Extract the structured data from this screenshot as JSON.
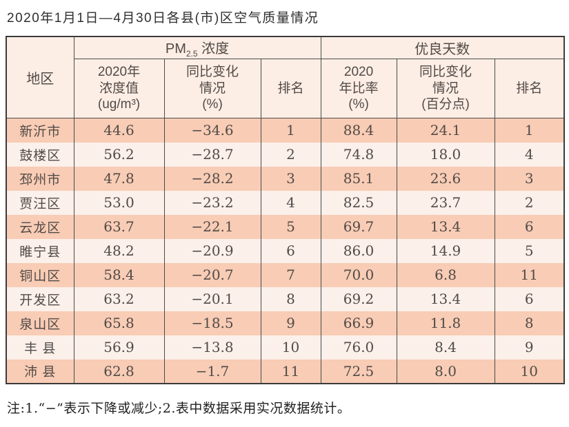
{
  "page_title": "2020年1月1日—4月30日各县(市)区空气质量情况",
  "table": {
    "header": {
      "region": "地区",
      "pm_prefix": "PM",
      "pm_sub": "2.5",
      "pm_suffix": " 浓度",
      "good_days": "优良天数",
      "col_concentration": "2020年\n浓度值\n(ug/m³)",
      "col_yoy_pct": "同比变化\n情况\n(%)",
      "col_rank_pm": "排名",
      "col_ratio": "2020\n年比率\n(%)",
      "col_yoy_pp": "同比变化\n情况\n(百分点)",
      "col_rank_days": "排名"
    },
    "rows": [
      [
        "新沂市",
        "44.6",
        "−34.6",
        "1",
        "88.4",
        "24.1",
        "1"
      ],
      [
        "鼓楼区",
        "56.2",
        "−28.7",
        "2",
        "74.8",
        "18.0",
        "4"
      ],
      [
        "邳州市",
        "47.8",
        "−28.2",
        "3",
        "85.1",
        "23.6",
        "3"
      ],
      [
        "贾汪区",
        "53.0",
        "−23.2",
        "4",
        "82.5",
        "23.7",
        "2"
      ],
      [
        "云龙区",
        "63.7",
        "−22.1",
        "5",
        "69.7",
        "13.4",
        "6"
      ],
      [
        "睢宁县",
        "48.2",
        "−20.9",
        "6",
        "86.0",
        "14.9",
        "5"
      ],
      [
        "铜山区",
        "58.4",
        "−20.7",
        "7",
        "70.0",
        "6.8",
        "11"
      ],
      [
        "开发区",
        "63.2",
        "−20.1",
        "8",
        "69.2",
        "13.4",
        "6"
      ],
      [
        "泉山区",
        "65.8",
        "−18.5",
        "9",
        "66.9",
        "11.8",
        "8"
      ],
      [
        "丰 县",
        "56.9",
        "−13.8",
        "10",
        "76.0",
        "8.4",
        "9"
      ],
      [
        "沛 县",
        "62.8",
        "−1.7",
        "11",
        "72.5",
        "8.0",
        "10"
      ]
    ]
  },
  "footnote": "注:1.“−”表示下降或减少;2.表中数据采用实况数据统计。",
  "colors": {
    "row_odd": "#f8ccb5",
    "row_even": "#fbf0ea",
    "header_bg": "#fdeee5",
    "border_inner": "#4a4a4a",
    "border_outer": "#3a3a3a",
    "text": "#514a47"
  }
}
